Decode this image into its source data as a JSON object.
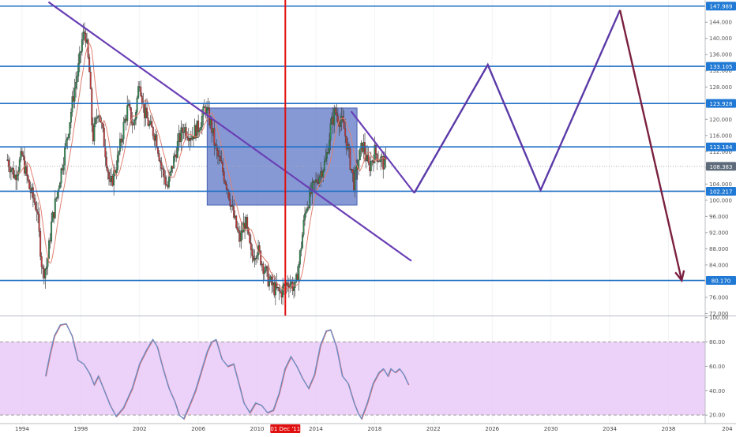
{
  "chart_data": [
    {
      "type": "candlestick",
      "title": "",
      "x": {
        "type": "date",
        "range": [
          1992.5,
          2040.5
        ],
        "ticks": [
          "1994",
          "1998",
          "2002",
          "2006",
          "2010",
          "2014",
          "2018",
          "2022",
          "2026",
          "2030",
          "2034",
          "2038",
          "204"
        ]
      },
      "y": {
        "range": [
          71.5,
          149.5
        ],
        "ticks": [
          72,
          76,
          80,
          84,
          88,
          92,
          96,
          100,
          104,
          108,
          112,
          116,
          120,
          124,
          128,
          132,
          136,
          140,
          144
        ]
      },
      "current_price": 108.383,
      "crosshair_date_label": "01 Dec '11",
      "crosshair_date": 2011.92,
      "horizontal_levels": [
        147.989,
        133.105,
        123.928,
        113.184,
        102.217,
        80.17
      ],
      "price_path": [
        [
          1993.0,
          110
        ],
        [
          1993.5,
          106
        ],
        [
          1994.0,
          111
        ],
        [
          1994.5,
          103
        ],
        [
          1995.0,
          98
        ],
        [
          1995.2,
          90
        ],
        [
          1995.4,
          82
        ],
        [
          1995.7,
          84
        ],
        [
          1996.0,
          94
        ],
        [
          1996.5,
          104
        ],
        [
          1997.0,
          114
        ],
        [
          1997.5,
          126
        ],
        [
          1997.9,
          134
        ],
        [
          1998.1,
          140
        ],
        [
          1998.3,
          142
        ],
        [
          1998.6,
          131
        ],
        [
          1998.8,
          115
        ],
        [
          1999.2,
          123
        ],
        [
          1999.6,
          114
        ],
        [
          2000.0,
          103
        ],
        [
          2000.5,
          110
        ],
        [
          2000.9,
          118
        ],
        [
          2001.2,
          123
        ],
        [
          2001.6,
          118
        ],
        [
          2002.0,
          130
        ],
        [
          2002.3,
          122
        ],
        [
          2002.7,
          118
        ],
        [
          2003.1,
          116
        ],
        [
          2003.5,
          108
        ],
        [
          2003.9,
          103
        ],
        [
          2004.2,
          108
        ],
        [
          2004.6,
          114
        ],
        [
          2005.0,
          118
        ],
        [
          2005.5,
          116
        ],
        [
          2006.0,
          118
        ],
        [
          2006.5,
          123
        ],
        [
          2006.9,
          118
        ],
        [
          2007.2,
          112
        ],
        [
          2007.6,
          108
        ],
        [
          2008.0,
          103
        ],
        [
          2008.4,
          96
        ],
        [
          2008.8,
          90
        ],
        [
          2009.2,
          95
        ],
        [
          2009.6,
          86
        ],
        [
          2010.0,
          88
        ],
        [
          2010.4,
          84
        ],
        [
          2010.8,
          80
        ],
        [
          2011.2,
          78
        ],
        [
          2011.6,
          77
        ],
        [
          2011.9,
          79
        ],
        [
          2012.2,
          80
        ],
        [
          2012.6,
          78
        ],
        [
          2012.9,
          86
        ],
        [
          2013.3,
          98
        ],
        [
          2013.7,
          102
        ],
        [
          2014.2,
          106
        ],
        [
          2014.7,
          110
        ],
        [
          2015.0,
          118
        ],
        [
          2015.3,
          122
        ],
        [
          2015.6,
          120
        ],
        [
          2015.9,
          118
        ],
        [
          2016.2,
          112
        ],
        [
          2016.6,
          104
        ],
        [
          2016.9,
          110
        ],
        [
          2017.2,
          114
        ],
        [
          2017.6,
          108
        ],
        [
          2018.0,
          112
        ],
        [
          2018.4,
          110
        ],
        [
          2018.8,
          108.383
        ]
      ],
      "annotations": {
        "descending_trendline": [
          [
            1995.8,
            149
          ],
          [
            2020.5,
            85
          ]
        ],
        "short_trendline": [
          [
            2016.4,
            122
          ],
          [
            2020.7,
            101.8
          ]
        ],
        "rectangle": {
          "x": [
            2006.6,
            2016.8
          ],
          "y": [
            98.8,
            122.8
          ]
        },
        "projection_path": [
          [
            2020.7,
            101.8
          ],
          [
            2025.7,
            133.5
          ],
          [
            2029.3,
            102.5
          ],
          [
            2034.7,
            147
          ],
          [
            2038.9,
            80.2
          ]
        ],
        "projection_down_segment_from": 3
      },
      "colors": {
        "level_line": "#1e6fc5",
        "label_bg": "#2079d4",
        "trendline": "#6a3fb5",
        "projection": "#5c3aa8",
        "projection_down": "#7b2040",
        "rectangle_fill": "#5e77c7",
        "crosshair": "#e01010",
        "candle_up": "#2c8a4f",
        "candle_down": "#c43a3a",
        "ma_line": "#e08070",
        "current_price_bg": "#5d6b7a"
      }
    },
    {
      "type": "line",
      "title": "",
      "y": {
        "range": [
          13,
          101
        ],
        "ticks": [
          20,
          40,
          60,
          80,
          100
        ]
      },
      "band": [
        20,
        80
      ],
      "band_color": "#e9c9f7",
      "series": [
        {
          "color": "#6a8fc8",
          "values": [
            [
              1995.6,
              52
            ],
            [
              1995.9,
              70
            ],
            [
              1996.2,
              85
            ],
            [
              1996.6,
              94
            ],
            [
              1997.0,
              95
            ],
            [
              1997.4,
              85
            ],
            [
              1997.8,
              65
            ],
            [
              1998.2,
              62
            ],
            [
              1998.6,
              54
            ],
            [
              1998.9,
              45
            ],
            [
              1999.2,
              52
            ],
            [
              1999.6,
              40
            ],
            [
              2000.0,
              28
            ],
            [
              2000.4,
              19
            ],
            [
              2000.9,
              26
            ],
            [
              2001.5,
              42
            ],
            [
              2002.0,
              62
            ],
            [
              2002.5,
              74
            ],
            [
              2002.9,
              82
            ],
            [
              2003.2,
              76
            ],
            [
              2003.6,
              58
            ],
            [
              2004.0,
              42
            ],
            [
              2004.4,
              31
            ],
            [
              2004.7,
              20
            ],
            [
              2005.0,
              17
            ],
            [
              2005.4,
              28
            ],
            [
              2005.8,
              40
            ],
            [
              2006.2,
              56
            ],
            [
              2006.6,
              72
            ],
            [
              2006.9,
              80
            ],
            [
              2007.2,
              82
            ],
            [
              2007.6,
              66
            ],
            [
              2008.0,
              60
            ],
            [
              2008.4,
              62
            ],
            [
              2008.8,
              44
            ],
            [
              2009.1,
              30
            ],
            [
              2009.5,
              22
            ],
            [
              2009.9,
              30
            ],
            [
              2010.3,
              28
            ],
            [
              2010.7,
              22
            ],
            [
              2011.1,
              24
            ],
            [
              2011.5,
              38
            ],
            [
              2011.9,
              58
            ],
            [
              2012.3,
              68
            ],
            [
              2012.7,
              60
            ],
            [
              2013.1,
              50
            ],
            [
              2013.5,
              42
            ],
            [
              2013.9,
              53
            ],
            [
              2014.3,
              77
            ],
            [
              2014.7,
              89
            ],
            [
              2015.0,
              90
            ],
            [
              2015.4,
              76
            ],
            [
              2015.8,
              52
            ],
            [
              2016.2,
              46
            ],
            [
              2016.6,
              30
            ],
            [
              2016.9,
              21
            ],
            [
              2017.1,
              17
            ],
            [
              2017.5,
              30
            ],
            [
              2017.9,
              46
            ],
            [
              2018.3,
              55
            ],
            [
              2018.6,
              58
            ],
            [
              2018.9,
              52
            ],
            [
              2019.1,
              58
            ],
            [
              2019.4,
              55
            ],
            [
              2019.7,
              58
            ],
            [
              2020.0,
              53
            ],
            [
              2020.3,
              45
            ]
          ]
        }
      ]
    }
  ]
}
